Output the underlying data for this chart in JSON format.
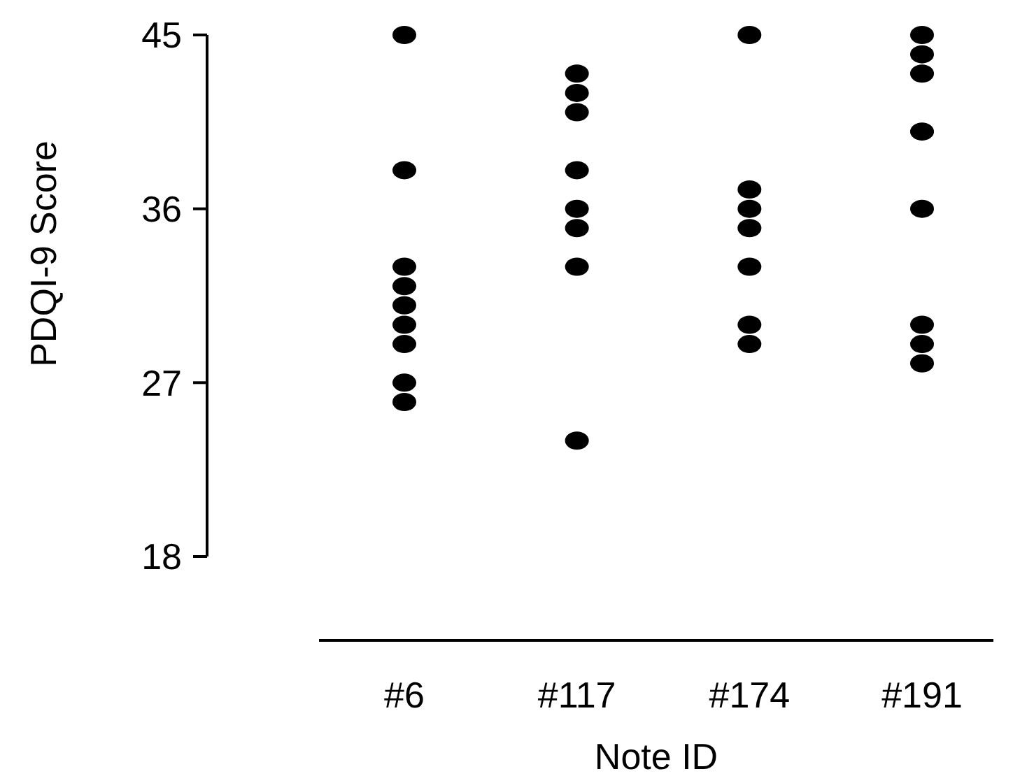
{
  "chart_data": {
    "type": "scatter",
    "xlabel": "Note ID",
    "ylabel": "PDQI-9 Score",
    "categories": [
      "#6",
      "#117",
      "#174",
      "#191"
    ],
    "ylim": [
      18,
      45
    ],
    "yticks": [
      18,
      27,
      36,
      45
    ],
    "marker": "circle",
    "grid": false,
    "series": [
      {
        "color": "#000000",
        "x": [
          "#6",
          "#6",
          "#6",
          "#6",
          "#6",
          "#6",
          "#6",
          "#6",
          "#6"
        ],
        "values": [
          45,
          38,
          33,
          32,
          31,
          30,
          29,
          27,
          26
        ]
      },
      {
        "color": "#000000",
        "x": [
          "#117",
          "#117",
          "#117",
          "#117",
          "#117",
          "#117",
          "#117",
          "#117"
        ],
        "values": [
          43,
          42,
          41,
          38,
          36,
          35,
          33,
          24
        ]
      },
      {
        "color": "#000000",
        "x": [
          "#174",
          "#174",
          "#174",
          "#174",
          "#174",
          "#174",
          "#174"
        ],
        "values": [
          45,
          37,
          36,
          35,
          33,
          30,
          29
        ]
      },
      {
        "color": "#000000",
        "x": [
          "#191",
          "#191",
          "#191",
          "#191",
          "#191",
          "#191",
          "#191",
          "#191"
        ],
        "values": [
          45,
          44,
          43,
          40,
          36,
          30,
          29,
          28
        ]
      }
    ]
  }
}
